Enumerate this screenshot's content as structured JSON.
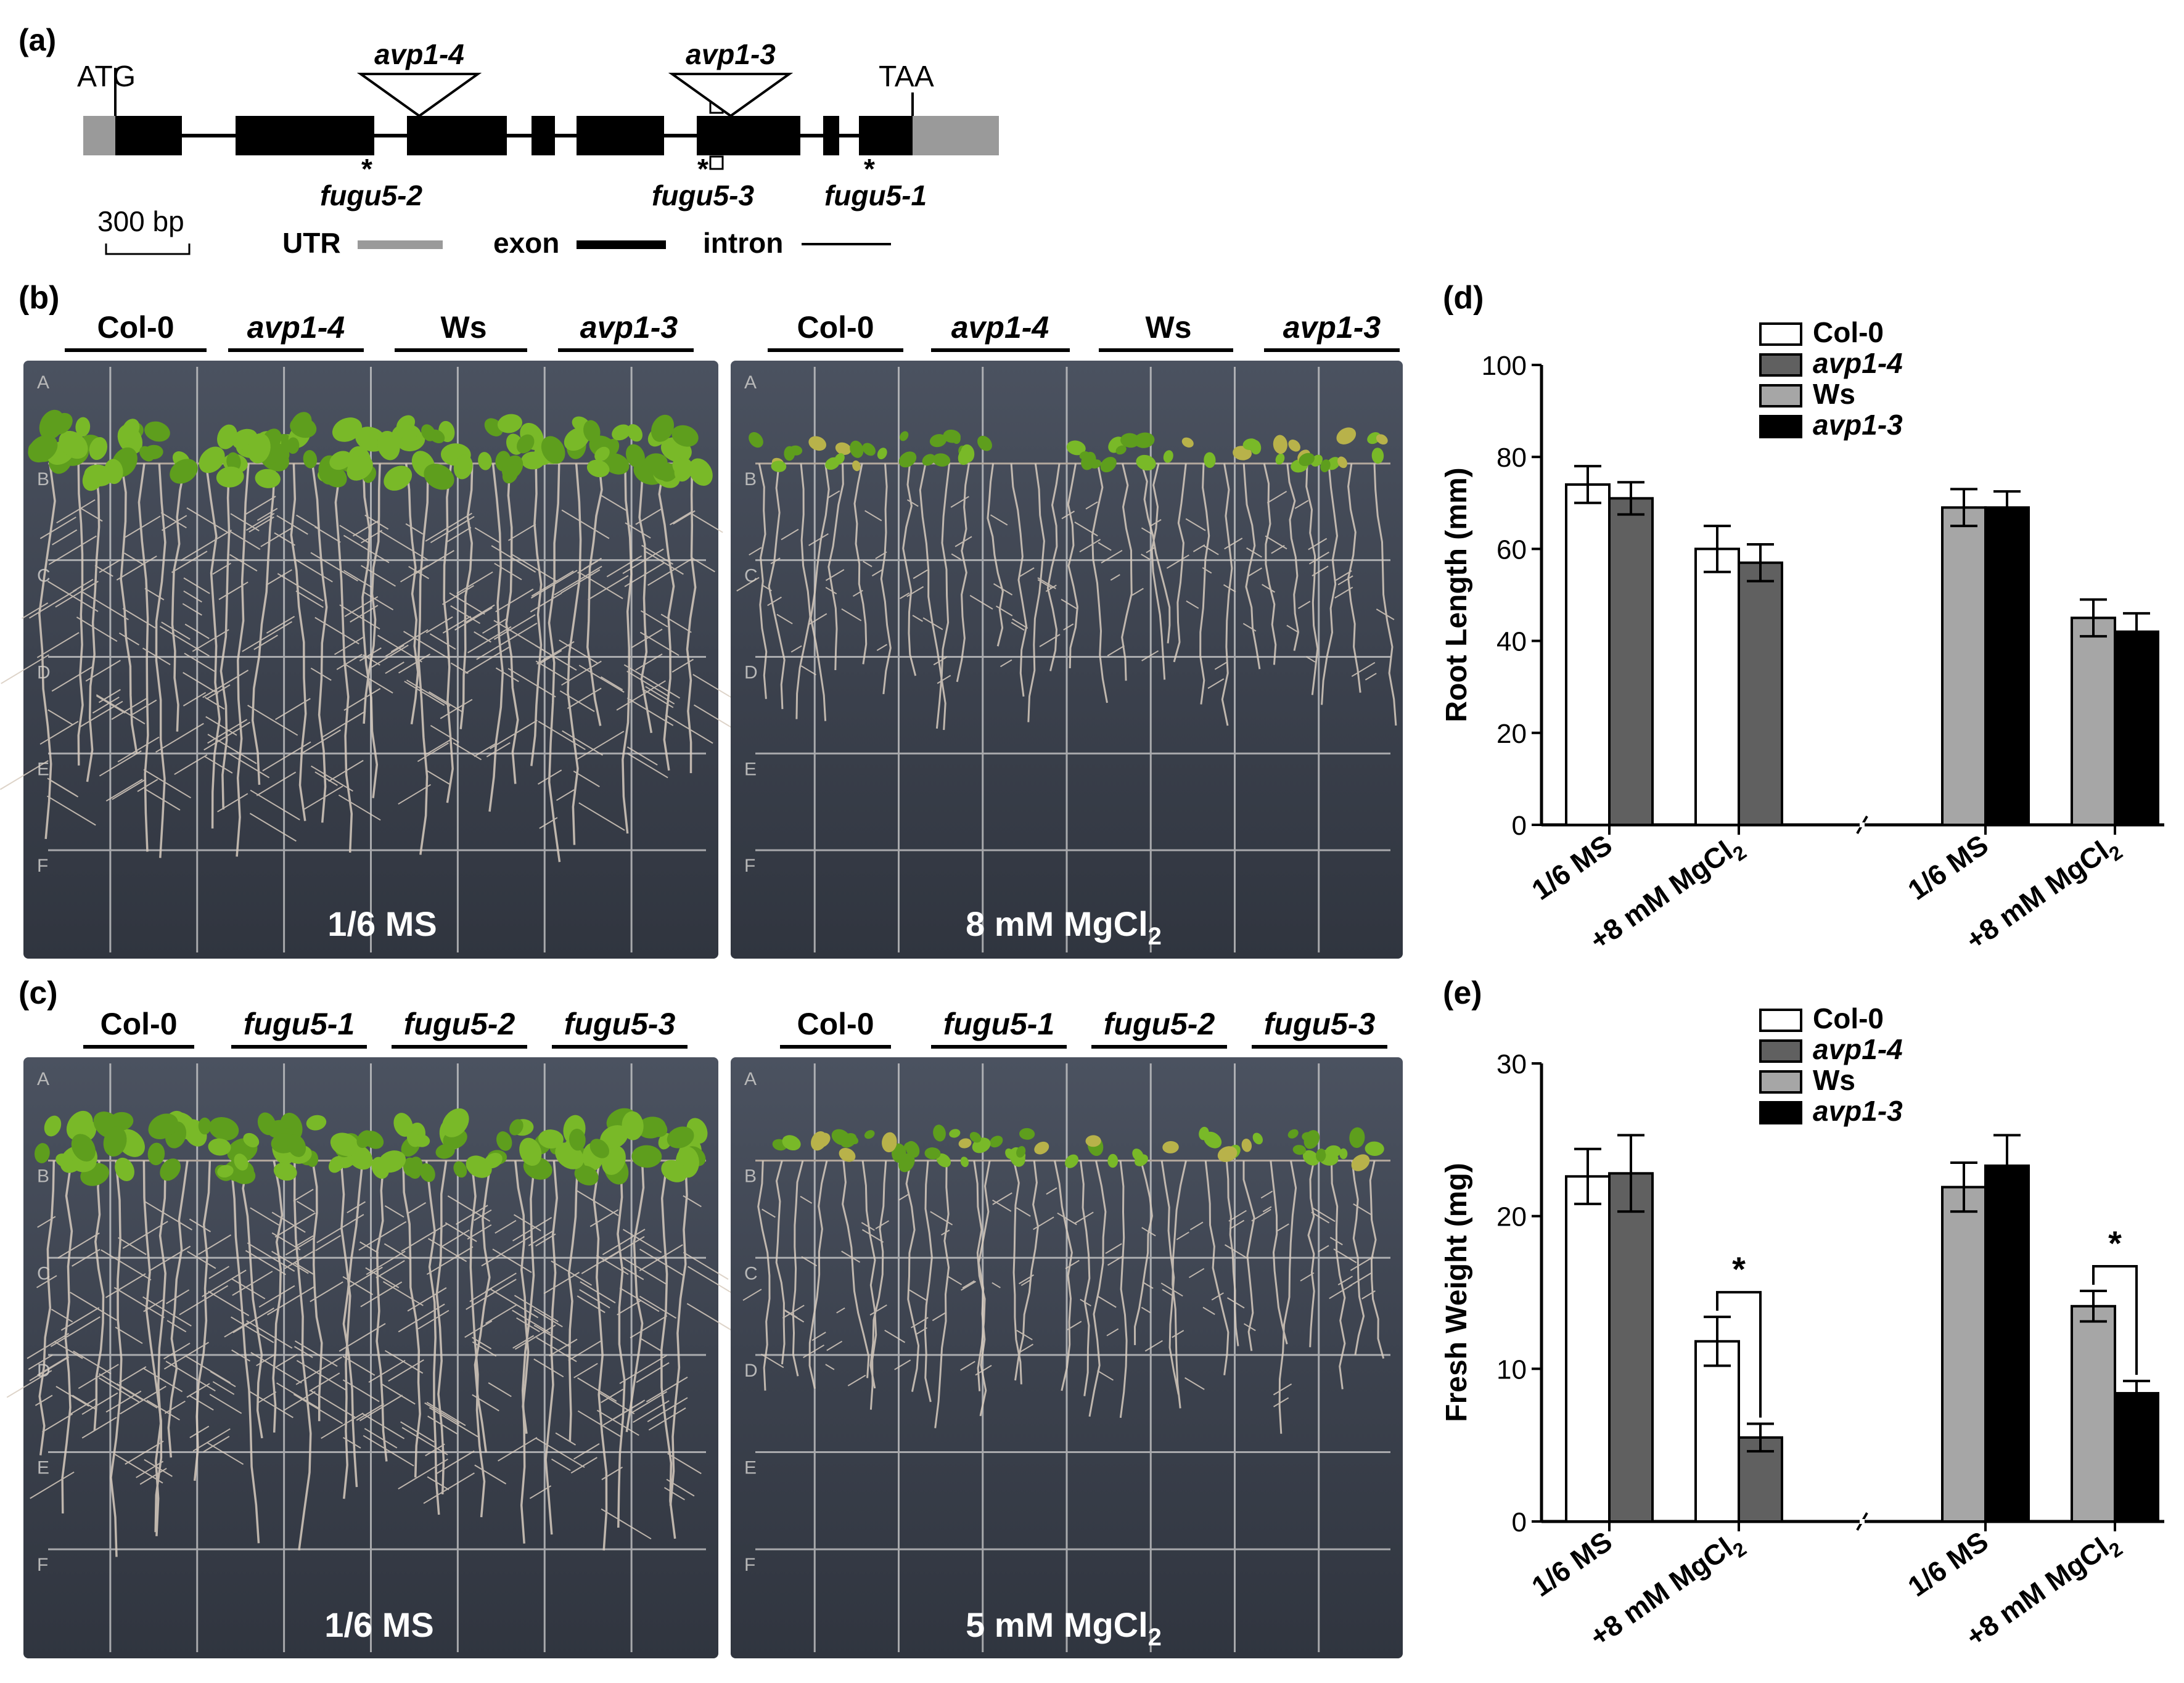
{
  "panel_labels": {
    "a": "(a)",
    "b": "(b)",
    "c": "(c)",
    "d": "(d)",
    "e": "(e)"
  },
  "gene_model": {
    "start_codon": "ATG",
    "stop_codon": "TAA",
    "insertions": [
      "avp1-4",
      "avp1-3"
    ],
    "point_mutations": [
      "fugu5-2",
      "fugu5-3",
      "fugu5-1"
    ],
    "mutation_marker": "*",
    "scale_bar": "300 bp",
    "legend": {
      "utr": "UTR",
      "exon": "exon",
      "intron": "intron"
    },
    "colors": {
      "utr": "#9a9a9a",
      "exon": "#000000",
      "intron": "#000000"
    }
  },
  "panel_b": {
    "genotypes": [
      "Col-0",
      "avp1-4",
      "Ws",
      "avp1-3"
    ],
    "left_condition": "1/6 MS",
    "right_condition_prefix": "8 mM MgCl",
    "right_condition_sub": "2",
    "grid_row_letters": [
      "A",
      "B",
      "C",
      "D",
      "E",
      "F"
    ]
  },
  "panel_c": {
    "genotypes": [
      "Col-0",
      "fugu5-1",
      "fugu5-2",
      "fugu5-3"
    ],
    "left_condition": "1/6 MS",
    "right_condition_prefix": "5 mM MgCl",
    "right_condition_sub": "2",
    "grid_row_letters": [
      "A",
      "B",
      "C",
      "D",
      "E",
      "F"
    ]
  },
  "chart_data": [
    {
      "type": "bar",
      "panel": "(d)",
      "ylabel": "Root Length (mm)",
      "ylim": [
        0,
        100
      ],
      "yticks": [
        0,
        20,
        40,
        60,
        80,
        100
      ],
      "categories": [
        "1/6 MS",
        "+8 mM MgCl2",
        "1/6 MS",
        "+8 mM MgCl2"
      ],
      "category_label_parts": [
        [
          "1/6 MS",
          ""
        ],
        [
          "+8 mM MgCl",
          "2"
        ],
        [
          "1/6 MS",
          ""
        ],
        [
          "+8 mM MgCl",
          "2"
        ]
      ],
      "legend_position": "top-center",
      "series": [
        {
          "name": "Col-0",
          "italic": false,
          "color": "#ffffff",
          "values": [
            74,
            60,
            null,
            null
          ],
          "errors": [
            4,
            5,
            null,
            null
          ]
        },
        {
          "name": "avp1-4",
          "italic": true,
          "color": "#606060",
          "values": [
            71,
            57,
            null,
            null
          ],
          "errors": [
            3.5,
            4,
            null,
            null
          ]
        },
        {
          "name": "Ws",
          "italic": false,
          "color": "#a6a6a6",
          "values": [
            null,
            null,
            69,
            45
          ],
          "errors": [
            null,
            null,
            4,
            4
          ]
        },
        {
          "name": "avp1-3",
          "italic": true,
          "color": "#000000",
          "values": [
            null,
            null,
            69,
            42
          ],
          "errors": [
            null,
            null,
            3.5,
            4
          ]
        }
      ],
      "significance": []
    },
    {
      "type": "bar",
      "panel": "(e)",
      "ylabel": "Fresh Weight (mg)",
      "ylim": [
        0,
        30
      ],
      "yticks": [
        0,
        10,
        20,
        30
      ],
      "categories": [
        "1/6 MS",
        "+8 mM MgCl2",
        "1/6 MS",
        "+8 mM MgCl2"
      ],
      "category_label_parts": [
        [
          "1/6 MS",
          ""
        ],
        [
          "+8 mM MgCl",
          "2"
        ],
        [
          "1/6 MS",
          ""
        ],
        [
          "+8 mM MgCl",
          "2"
        ]
      ],
      "legend_position": "top-center",
      "series": [
        {
          "name": "Col-0",
          "italic": false,
          "color": "#ffffff",
          "values": [
            22.6,
            11.8,
            null,
            null
          ],
          "errors": [
            1.8,
            1.6,
            null,
            null
          ]
        },
        {
          "name": "avp1-4",
          "italic": true,
          "color": "#606060",
          "values": [
            22.8,
            5.5,
            null,
            null
          ],
          "errors": [
            2.5,
            0.9,
            null,
            null
          ]
        },
        {
          "name": "Ws",
          "italic": false,
          "color": "#a6a6a6",
          "values": [
            null,
            null,
            21.9,
            14.1
          ],
          "errors": [
            null,
            null,
            1.6,
            1.0
          ]
        },
        {
          "name": "avp1-3",
          "italic": true,
          "color": "#000000",
          "values": [
            null,
            null,
            23.3,
            8.4
          ],
          "errors": [
            null,
            null,
            2.0,
            0.8
          ]
        }
      ],
      "significance": [
        {
          "group": 1,
          "between": [
            0,
            1
          ],
          "label": "*"
        },
        {
          "group": 3,
          "between": [
            2,
            3
          ],
          "label": "*"
        }
      ]
    }
  ]
}
